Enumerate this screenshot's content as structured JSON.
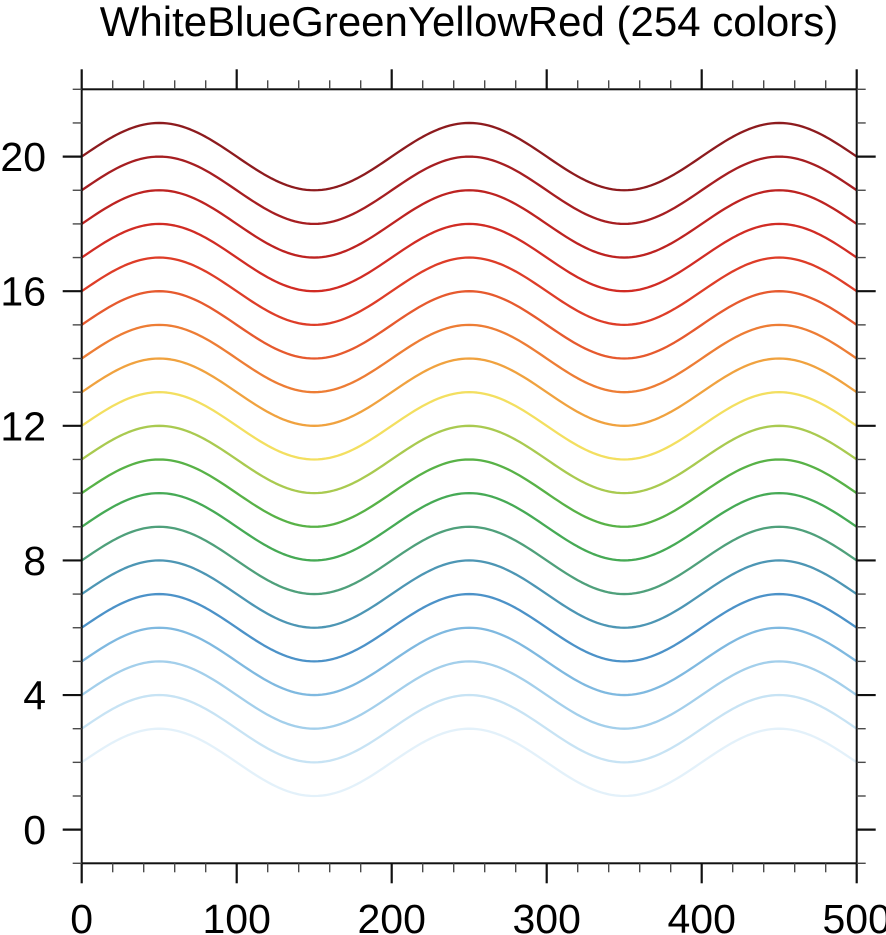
{
  "chart_data": {
    "type": "line",
    "title": "WhiteBlueGreenYellowRed (254 colors)",
    "description": "Family of sine curves colored by successive samples of the WhiteBlueGreenYellowRed colormap, light blue at bottom to dark red at top",
    "grid": false,
    "legend": false,
    "x_axis": {
      "min": 0,
      "max": 500,
      "major_tick_interval": 100,
      "minor_tick_interval": 20,
      "major_ticks": [
        0,
        100,
        200,
        300,
        400,
        500
      ],
      "tick_labels": [
        "0",
        "100",
        "200",
        "300",
        "400",
        "500"
      ]
    },
    "y_axis": {
      "min": -1,
      "max": 22,
      "major_tick_interval": 4,
      "minor_tick_interval": 1,
      "major_ticks": [
        0,
        4,
        8,
        12,
        16,
        20
      ],
      "tick_labels": [
        "0",
        "4",
        "8",
        "12",
        "16",
        "20"
      ]
    },
    "function": "y(x) = offset + amplitude * sin(2*pi*x / period)",
    "wave_period": 200,
    "wave_amplitude": 1,
    "series": [
      {
        "name": "curve-02",
        "offset": 2,
        "color": "#E3F1FA"
      },
      {
        "name": "curve-03",
        "offset": 3,
        "color": "#C7E3F4"
      },
      {
        "name": "curve-04",
        "offset": 4,
        "color": "#A3CFEB"
      },
      {
        "name": "curve-05",
        "offset": 5,
        "color": "#7FB9E0"
      },
      {
        "name": "curve-06",
        "offset": 6,
        "color": "#4C92C8"
      },
      {
        "name": "curve-07",
        "offset": 7,
        "color": "#4D96B4"
      },
      {
        "name": "curve-08",
        "offset": 8,
        "color": "#4FA07B"
      },
      {
        "name": "curve-09",
        "offset": 9,
        "color": "#46AA55"
      },
      {
        "name": "curve-10",
        "offset": 10,
        "color": "#58B247"
      },
      {
        "name": "curve-11",
        "offset": 11,
        "color": "#A9CA50"
      },
      {
        "name": "curve-12",
        "offset": 12,
        "color": "#F3DF60"
      },
      {
        "name": "curve-13",
        "offset": 13,
        "color": "#F0A23F"
      },
      {
        "name": "curve-14",
        "offset": 14,
        "color": "#ED7D35"
      },
      {
        "name": "curve-15",
        "offset": 15,
        "color": "#E65A2E"
      },
      {
        "name": "curve-16",
        "offset": 16,
        "color": "#DE3D28"
      },
      {
        "name": "curve-17",
        "offset": 17,
        "color": "#D12C24"
      },
      {
        "name": "curve-18",
        "offset": 18,
        "color": "#BD2321"
      },
      {
        "name": "curve-19",
        "offset": 19,
        "color": "#A61E21"
      },
      {
        "name": "curve-20",
        "offset": 20,
        "color": "#8D1B1E"
      }
    ]
  },
  "colors": {
    "background": "#FFFFFF",
    "axis_major": "#111111",
    "axis_minor": "#4A4A4A",
    "text": "#000000"
  }
}
